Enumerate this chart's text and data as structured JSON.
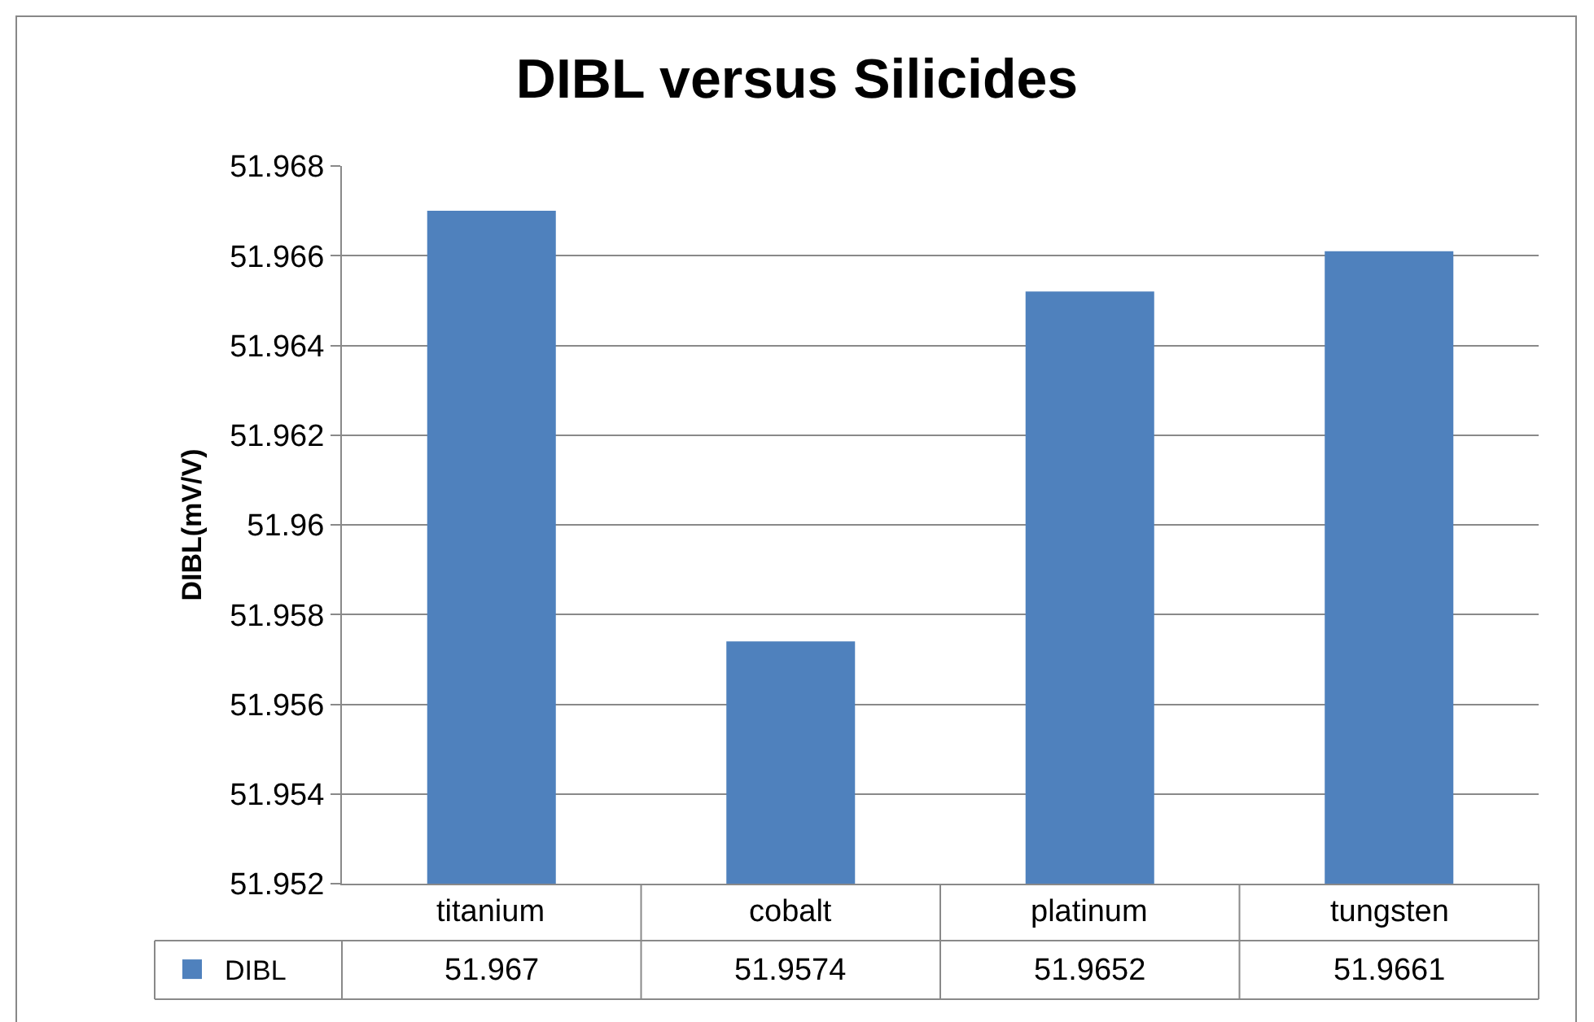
{
  "chart_data": {
    "type": "bar",
    "title": "DIBL versus Silicides",
    "ylabel": "DIBL(mV/V)",
    "categories": [
      "titanium",
      "cobalt",
      "platinum",
      "tungsten"
    ],
    "series": [
      {
        "name": "DIBL",
        "color": "#4f81bd",
        "values": [
          51.967,
          51.9574,
          51.9652,
          51.9661
        ]
      }
    ],
    "ylim": [
      51.952,
      51.968
    ],
    "yticks": [
      51.952,
      51.954,
      51.956,
      51.958,
      51.96,
      51.962,
      51.964,
      51.966,
      51.968
    ],
    "grid": "y",
    "legend": "bottom left",
    "data_labels": true
  }
}
